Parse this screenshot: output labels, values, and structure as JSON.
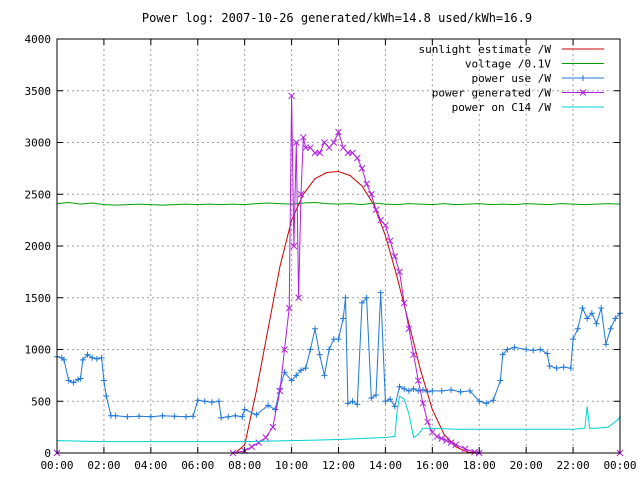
{
  "chart_data": {
    "type": "line",
    "title": "Power log: 2007-10-26 generated/kWh=14.8 used/kWh=16.9",
    "xlabel": "",
    "ylabel": "",
    "xlim": [
      0,
      24
    ],
    "ylim": [
      0,
      4000
    ],
    "x_ticks": [
      "00:00",
      "02:00",
      "04:00",
      "06:00",
      "08:00",
      "10:00",
      "12:00",
      "14:00",
      "16:00",
      "18:00",
      "20:00",
      "22:00",
      "00:00"
    ],
    "y_ticks": [
      0,
      500,
      1000,
      1500,
      2000,
      2500,
      3000,
      3500,
      4000
    ],
    "grid": true,
    "legend_position": "top-right",
    "series": [
      {
        "name": "sunlight estimate /W",
        "color": "#cc0000",
        "marker": "none",
        "x": [
          7.6,
          8.0,
          8.5,
          9.0,
          9.5,
          10.0,
          10.5,
          11.0,
          11.5,
          12.0,
          12.5,
          13.0,
          13.5,
          14.0,
          14.5,
          15.0,
          15.5,
          16.0,
          16.5,
          17.0,
          17.5,
          18.0
        ],
        "values": [
          0,
          80,
          600,
          1200,
          1800,
          2250,
          2500,
          2650,
          2710,
          2720,
          2680,
          2580,
          2400,
          2100,
          1700,
          1250,
          800,
          420,
          180,
          60,
          10,
          0
        ]
      },
      {
        "name": "voltage /0.1V",
        "color": "#00a000",
        "marker": "none",
        "x": [
          0,
          0.5,
          1.0,
          1.5,
          2.0,
          2.5,
          3.0,
          3.5,
          4.0,
          4.5,
          5.0,
          5.5,
          6.0,
          6.5,
          7.0,
          7.5,
          8.0,
          8.5,
          9.0,
          9.5,
          10.0,
          10.5,
          11.0,
          11.5,
          12.0,
          12.5,
          13.0,
          13.5,
          14.0,
          14.5,
          15.0,
          15.5,
          16.0,
          16.5,
          17.0,
          17.5,
          18.0,
          18.5,
          19.0,
          19.5,
          20.0,
          20.5,
          21.0,
          21.5,
          22.0,
          22.5,
          23.0,
          23.5,
          24.0
        ],
        "values": [
          2410,
          2420,
          2405,
          2415,
          2400,
          2395,
          2400,
          2405,
          2400,
          2395,
          2400,
          2405,
          2400,
          2405,
          2400,
          2405,
          2400,
          2410,
          2415,
          2410,
          2405,
          2415,
          2420,
          2410,
          2405,
          2410,
          2400,
          2415,
          2405,
          2400,
          2410,
          2405,
          2400,
          2410,
          2400,
          2405,
          2410,
          2400,
          2405,
          2400,
          2410,
          2405,
          2400,
          2410,
          2405,
          2400,
          2405,
          2410,
          2405
        ]
      },
      {
        "name": "power use /W",
        "color": "#1f78d8",
        "marker": "+",
        "x": [
          0.0,
          0.2,
          0.3,
          0.5,
          0.7,
          0.9,
          1.0,
          1.1,
          1.3,
          1.5,
          1.7,
          1.9,
          2.0,
          2.1,
          2.3,
          2.5,
          3.0,
          3.5,
          4.0,
          4.5,
          5.0,
          5.5,
          5.8,
          6.0,
          6.3,
          6.6,
          6.9,
          7.0,
          7.3,
          7.6,
          7.9,
          8.0,
          8.5,
          9.0,
          9.3,
          9.5,
          9.7,
          10.0,
          10.2,
          10.4,
          10.6,
          10.8,
          11.0,
          11.2,
          11.4,
          11.6,
          11.8,
          12.0,
          12.2,
          12.3,
          12.4,
          12.6,
          12.8,
          13.0,
          13.2,
          13.4,
          13.6,
          13.8,
          14.0,
          14.2,
          14.4,
          14.6,
          14.8,
          15.0,
          15.2,
          15.4,
          15.6,
          15.8,
          16.0,
          16.4,
          16.8,
          17.2,
          17.6,
          18.0,
          18.3,
          18.6,
          18.9,
          19.0,
          19.2,
          19.5,
          20.0,
          20.3,
          20.6,
          20.9,
          21.0,
          21.3,
          21.6,
          21.9,
          22.0,
          22.2,
          22.4,
          22.6,
          22.8,
          23.0,
          23.2,
          23.4,
          23.6,
          23.8,
          24.0
        ],
        "values": [
          930,
          920,
          900,
          700,
          680,
          710,
          720,
          900,
          950,
          920,
          910,
          920,
          700,
          550,
          360,
          360,
          350,
          355,
          350,
          360,
          355,
          350,
          355,
          510,
          500,
          490,
          500,
          340,
          350,
          360,
          350,
          420,
          370,
          460,
          420,
          620,
          780,
          700,
          750,
          800,
          820,
          1000,
          1200,
          950,
          750,
          1000,
          1100,
          1100,
          1300,
          1500,
          480,
          500,
          470,
          1450,
          1500,
          530,
          560,
          1550,
          500,
          520,
          450,
          640,
          620,
          600,
          620,
          600,
          610,
          590,
          600,
          600,
          610,
          590,
          600,
          500,
          480,
          510,
          700,
          950,
          1000,
          1020,
          1000,
          990,
          1000,
          960,
          840,
          820,
          830,
          820,
          1100,
          1200,
          1400,
          1300,
          1350,
          1250,
          1400,
          1050,
          1200,
          1300,
          1350
        ]
      },
      {
        "name": "power generated /W",
        "color": "#b020e0",
        "marker": "x",
        "x": [
          0,
          7.5,
          8.0,
          8.3,
          8.6,
          8.9,
          9.2,
          9.5,
          9.7,
          9.9,
          10.0,
          10.1,
          10.2,
          10.3,
          10.4,
          10.5,
          10.6,
          10.8,
          11.0,
          11.2,
          11.4,
          11.6,
          11.8,
          12.0,
          12.2,
          12.4,
          12.6,
          12.8,
          13.0,
          13.2,
          13.4,
          13.6,
          13.8,
          14.0,
          14.2,
          14.4,
          14.6,
          14.8,
          15.0,
          15.2,
          15.4,
          15.6,
          15.8,
          16.0,
          16.2,
          16.4,
          16.6,
          16.8,
          17.0,
          17.4,
          17.8,
          18.0,
          24.0
        ],
        "values": [
          0,
          0,
          20,
          60,
          100,
          150,
          250,
          600,
          1000,
          1400,
          3450,
          2000,
          3000,
          1500,
          2500,
          3050,
          2950,
          2950,
          2900,
          2900,
          3000,
          2950,
          3000,
          3100,
          2950,
          2900,
          2900,
          2850,
          2750,
          2600,
          2500,
          2350,
          2250,
          2200,
          2050,
          1900,
          1750,
          1450,
          1200,
          950,
          700,
          480,
          300,
          200,
          160,
          140,
          120,
          100,
          80,
          40,
          10,
          0,
          0
        ]
      },
      {
        "name": "power on C14 /W",
        "color": "#00d0d0",
        "marker": "none",
        "x": [
          0,
          1.0,
          2.0,
          3.0,
          4.0,
          5.0,
          6.0,
          7.0,
          8.0,
          9.0,
          10.0,
          11.0,
          12.0,
          13.0,
          14.0,
          14.4,
          14.5,
          14.6,
          14.8,
          15.0,
          15.2,
          15.4,
          15.6,
          16.0,
          17.0,
          18.0,
          19.0,
          20.0,
          21.0,
          22.0,
          22.5,
          22.6,
          22.7,
          23.0,
          23.5,
          23.9,
          24.0
        ],
        "values": [
          120,
          115,
          110,
          110,
          110,
          110,
          110,
          110,
          110,
          115,
          120,
          125,
          130,
          140,
          150,
          160,
          400,
          550,
          520,
          380,
          150,
          180,
          240,
          240,
          230,
          230,
          230,
          230,
          230,
          230,
          240,
          450,
          240,
          240,
          250,
          320,
          350
        ]
      }
    ]
  }
}
